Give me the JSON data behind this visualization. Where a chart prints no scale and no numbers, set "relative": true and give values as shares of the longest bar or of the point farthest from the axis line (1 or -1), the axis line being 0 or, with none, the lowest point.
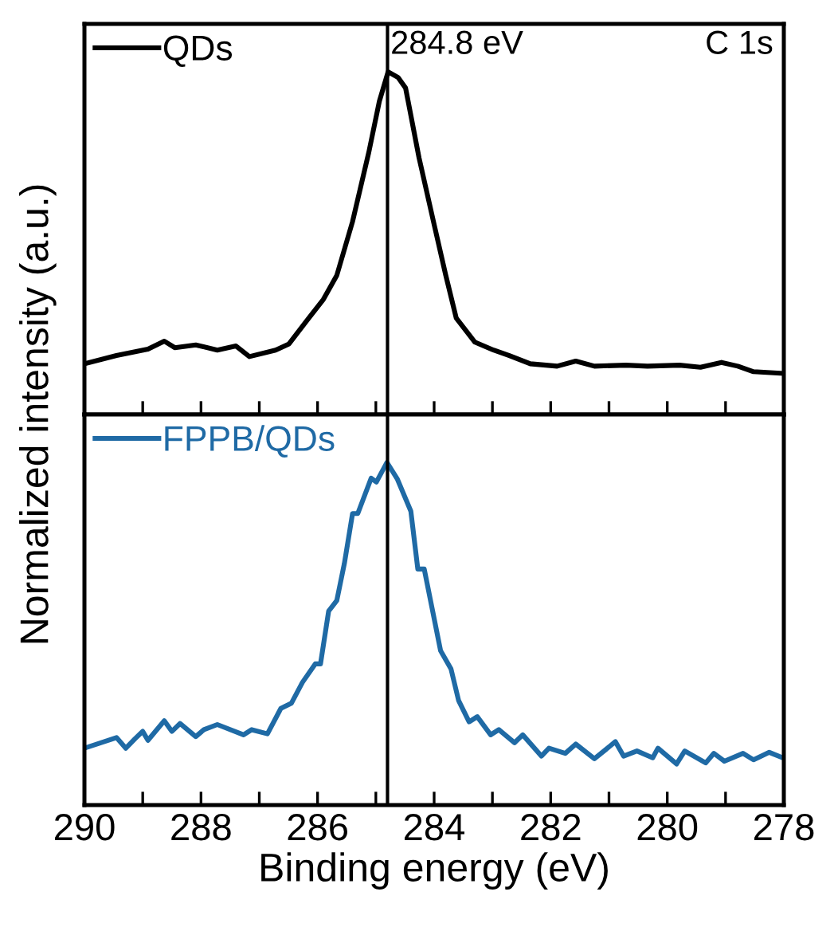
{
  "chart_data": [
    {
      "type": "line",
      "relative": true,
      "ylabel": "Normalized intensity (a.u.)",
      "xlim": [
        290,
        278
      ],
      "xticks": [
        290,
        {
          "value": 289,
          "label": null
        },
        288,
        {
          "value": 287,
          "label": null
        },
        286,
        {
          "value": 285,
          "label": null
        },
        284,
        {
          "value": 283,
          "label": null
        },
        282,
        {
          "value": 281,
          "label": null
        },
        280,
        {
          "value": 279,
          "label": null
        },
        278
      ],
      "tick_labels": false,
      "legend": "top left",
      "line_style": "solid",
      "marker": "none",
      "annotations": [
        "C 1s"
      ],
      "ref_lines": [
        {
          "axis": "x",
          "value": 284.8,
          "label": "284.8 eV",
          "color": "#000000"
        }
      ],
      "series": [
        {
          "name": "QDs",
          "color": "#000000",
          "x": [
            290.0,
            289.45,
            288.91,
            288.63,
            288.45,
            288.09,
            287.72,
            287.4,
            287.17,
            286.72,
            286.49,
            286.17,
            285.9,
            285.67,
            285.4,
            285.12,
            284.94,
            284.79,
            284.62,
            284.49,
            284.26,
            283.99,
            283.8,
            283.62,
            283.3,
            282.98,
            282.71,
            282.35,
            281.89,
            281.57,
            281.25,
            280.71,
            280.34,
            279.79,
            279.43,
            279.07,
            278.79,
            278.52,
            278.02
          ],
          "values": [
            0.148,
            0.172,
            0.191,
            0.214,
            0.195,
            0.203,
            0.188,
            0.2,
            0.169,
            0.188,
            0.206,
            0.277,
            0.336,
            0.406,
            0.563,
            0.766,
            0.914,
            1.0,
            0.984,
            0.953,
            0.75,
            0.547,
            0.406,
            0.281,
            0.211,
            0.188,
            0.172,
            0.148,
            0.141,
            0.156,
            0.141,
            0.144,
            0.141,
            0.144,
            0.138,
            0.152,
            0.141,
            0.125,
            0.12
          ]
        }
      ]
    },
    {
      "type": "line",
      "relative": true,
      "xlabel": "Binding energy (eV)",
      "xlim": [
        290,
        278
      ],
      "xticks": [
        290,
        {
          "value": 289,
          "label": null
        },
        288,
        {
          "value": 287,
          "label": null
        },
        286,
        {
          "value": 285,
          "label": null
        },
        284,
        {
          "value": 283,
          "label": null
        },
        282,
        {
          "value": 281,
          "label": null
        },
        280,
        {
          "value": 279,
          "label": null
        },
        278
      ],
      "tick_labels": "x",
      "legend": "top left",
      "line_style": "solid",
      "marker": "none",
      "ref_lines": [
        {
          "axis": "x",
          "value": 284.8,
          "color": "#000000"
        }
      ],
      "series": [
        {
          "name": "FPPB/QDs",
          "color": "#1f6aa5",
          "x": [
            290.0,
            289.45,
            289.29,
            289.13,
            289.0,
            288.91,
            288.63,
            288.5,
            288.36,
            288.09,
            287.95,
            287.72,
            287.27,
            287.13,
            286.86,
            286.63,
            286.45,
            286.26,
            286.04,
            285.95,
            285.81,
            285.67,
            285.54,
            285.4,
            285.31,
            285.08,
            284.99,
            284.81,
            284.63,
            284.4,
            284.28,
            284.17,
            283.89,
            283.71,
            283.58,
            283.4,
            283.26,
            283.03,
            282.89,
            282.62,
            282.48,
            282.16,
            282.03,
            281.75,
            281.57,
            281.25,
            280.89,
            280.75,
            280.52,
            280.25,
            280.16,
            279.84,
            279.7,
            279.34,
            279.2,
            279.02,
            278.7,
            278.52,
            278.25,
            278.02
          ],
          "values": [
            0.166,
            0.197,
            0.166,
            0.194,
            0.215,
            0.189,
            0.246,
            0.215,
            0.238,
            0.2,
            0.22,
            0.235,
            0.205,
            0.22,
            0.208,
            0.282,
            0.297,
            0.358,
            0.412,
            0.412,
            0.566,
            0.597,
            0.705,
            0.851,
            0.851,
            0.954,
            0.943,
            1.0,
            0.951,
            0.858,
            0.689,
            0.689,
            0.451,
            0.397,
            0.305,
            0.243,
            0.258,
            0.205,
            0.22,
            0.182,
            0.205,
            0.143,
            0.166,
            0.151,
            0.178,
            0.135,
            0.185,
            0.143,
            0.158,
            0.138,
            0.166,
            0.12,
            0.158,
            0.123,
            0.151,
            0.128,
            0.151,
            0.132,
            0.154,
            0.138
          ]
        }
      ]
    }
  ]
}
